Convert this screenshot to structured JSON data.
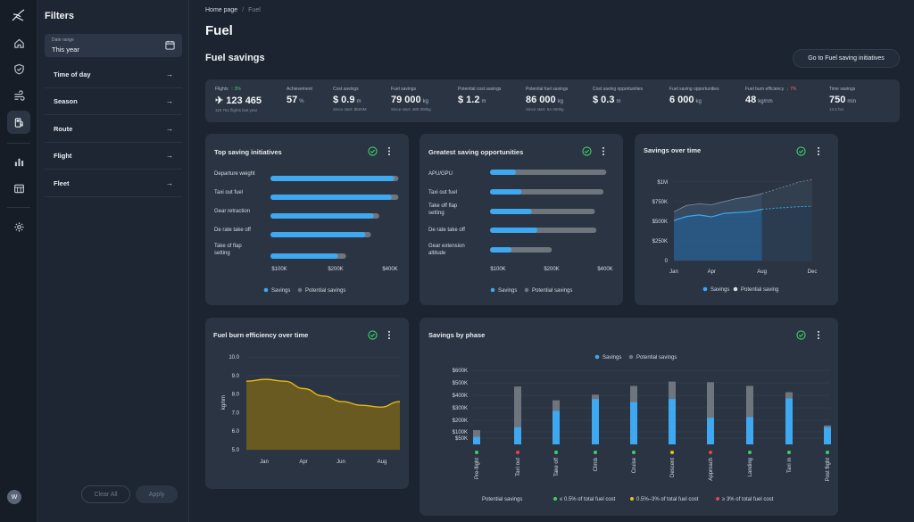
{
  "nav": {
    "icons": [
      "home-icon",
      "shield-icon",
      "wind-icon",
      "fuel-icon",
      "bar-chart-icon",
      "table-icon",
      "gear-icon"
    ]
  },
  "filters": {
    "title": "Filters",
    "date_range_label": "Date range",
    "date_range_value": "This year",
    "items": [
      "Time of day",
      "Season",
      "Route",
      "Flight",
      "Fleet"
    ],
    "clear_label": "Clear All",
    "apply_label": "Apply",
    "avatar_initial": "W"
  },
  "breadcrumb": {
    "home": "Home page",
    "current": "Fuel"
  },
  "page_title": "Fuel",
  "section_title": "Fuel savings",
  "cta_label": "Go to Fuel saving initiatives",
  "kpis": [
    {
      "label": "Flights",
      "delta": "3%",
      "delta_dir": "up",
      "value": "123 465",
      "unit": "",
      "sub": "119 761 flights last year"
    },
    {
      "label": "Achievement",
      "value": "57",
      "unit": "%",
      "sub": ""
    },
    {
      "label": "Cost savings",
      "value": "$ 0.9",
      "unit": "m",
      "sub": "Since start: $500M"
    },
    {
      "label": "Fuel savings",
      "value": "79 000",
      "unit": "kg",
      "sub": "Since start: 480 000kg"
    },
    {
      "label": "Potential cost savings",
      "value": "$ 1.2",
      "unit": "m",
      "sub": ""
    },
    {
      "label": "Potential fuel savings",
      "value": "86 000",
      "unit": "kg",
      "sub": "Since start: 5A 000kg"
    },
    {
      "label": "Cost saving opportunities",
      "value": "$ 0.3",
      "unit": "m",
      "sub": ""
    },
    {
      "label": "Fuel saving opportunities",
      "value": "6 000",
      "unit": "kg",
      "sub": ""
    },
    {
      "label": "Fuel burn efficiency",
      "delta": "7%",
      "delta_dir": "down",
      "value": "48",
      "unit": "kg/nm",
      "sub": ""
    },
    {
      "label": "Time savings",
      "value": "750",
      "unit": "min",
      "sub": "12.5 hrs"
    }
  ],
  "colors": {
    "savings": "#3ea8f0",
    "potential": "#6f757d",
    "efficiency": "#e8b51a",
    "green": "#3ecf6a",
    "yellow": "#e8c21a",
    "red": "#e04848"
  },
  "chart_data": [
    {
      "type": "bar",
      "title": "Top  saving initiatives",
      "orientation": "horizontal",
      "categories": [
        "Departure weight",
        "Taxi out fuel",
        "Gear retraction",
        "De rate take off",
        "Take of flap setting"
      ],
      "series": [
        {
          "name": "Savings",
          "values": [
            450,
            440,
            375,
            345,
            245
          ]
        },
        {
          "name": "Potential savings",
          "values": [
            465,
            465,
            395,
            365,
            275
          ]
        }
      ],
      "tick_labels": [
        "$100K",
        "$200K",
        "$400K"
      ],
      "xlim": [
        0,
        470
      ],
      "legend": "bottom"
    },
    {
      "type": "bar",
      "title": "Greatest saving opportunities",
      "orientation": "horizontal",
      "categories": [
        "APU/GPU",
        "Taxi out fuel",
        "Take off flap setting",
        "De rate take off",
        "Gear extension altitude"
      ],
      "series": [
        {
          "name": "Savings",
          "values": [
            90,
            110,
            145,
            165,
            75
          ]
        },
        {
          "name": "Potential savings",
          "values": [
            405,
            395,
            365,
            370,
            215
          ]
        }
      ],
      "tick_labels": [
        "$100K",
        "$200K",
        "$400K"
      ],
      "xlim": [
        0,
        410
      ],
      "legend": "bottom"
    },
    {
      "type": "line",
      "title": "Savings over time",
      "x": [
        "Jan",
        "Feb",
        "Mar",
        "Apr",
        "May",
        "Jun",
        "Jul",
        "Aug",
        "Sep",
        "Oct",
        "Nov",
        "Dec"
      ],
      "series": [
        {
          "name": "Savings",
          "values": [
            510000,
            560000,
            580000,
            555000,
            600000,
            610000,
            620000,
            650000,
            null,
            null,
            null,
            null
          ],
          "forecast": [
            null,
            null,
            null,
            null,
            null,
            null,
            null,
            650000,
            665000,
            675000,
            685000,
            690000
          ]
        },
        {
          "name": "Potential saving",
          "values": [
            620000,
            700000,
            720000,
            710000,
            750000,
            790000,
            810000,
            850000,
            null,
            null,
            null,
            null
          ],
          "forecast": [
            null,
            null,
            null,
            null,
            null,
            null,
            null,
            850000,
            900000,
            950000,
            1000000,
            1030000
          ]
        }
      ],
      "tick_labels_x": [
        "Jan",
        "Apr",
        "Aug",
        "Dec"
      ],
      "tick_labels_y": [
        "0",
        "$250K",
        "$500K",
        "$750K",
        "$1M"
      ],
      "ylim": [
        0,
        1100000
      ],
      "legend": "bottom"
    },
    {
      "type": "area",
      "title": "Fuel burn efficiency over time",
      "ylabel": "kg/nm",
      "x": [
        1,
        2,
        3,
        4,
        5,
        6,
        7,
        8,
        9
      ],
      "values": [
        8.7,
        8.8,
        8.7,
        8.3,
        7.9,
        7.6,
        7.4,
        7.3,
        7.6
      ],
      "tick_labels_x": [
        "Jan",
        "Apr",
        "Jun",
        "Aug"
      ],
      "tick_labels_y": [
        "5.0",
        "6.0",
        "7.0",
        "8.0",
        "9.0",
        "10.0"
      ],
      "ylim": [
        5,
        10.3
      ]
    },
    {
      "type": "bar",
      "title": "Savings by phase",
      "categories": [
        "Pre-flight",
        "Taxi out",
        "Take off",
        "Climb",
        "Cruise",
        "Descent",
        "Approach",
        "Landing",
        "Taxi in",
        "Post flight"
      ],
      "series": [
        {
          "name": "Savings",
          "values": [
            60000,
            140000,
            275000,
            370000,
            345000,
            370000,
            220000,
            225000,
            375000,
            140000
          ]
        },
        {
          "name": "Potential savings",
          "values": [
            115000,
            470000,
            360000,
            405000,
            475000,
            510000,
            505000,
            475000,
            425000,
            155000
          ]
        }
      ],
      "category_status": [
        "green",
        "red",
        "green",
        "green",
        "green",
        "yellow",
        "red",
        "green",
        "green",
        "green"
      ],
      "tick_labels_y": [
        "$50K",
        "$100K",
        "$200K",
        "$300K",
        "$400K",
        "$500K",
        "$600K"
      ],
      "y_ticks": [
        50000,
        100000,
        200000,
        300000,
        400000,
        500000,
        600000
      ],
      "legend": "top",
      "status_legend_title": "Potential savings",
      "status_legend": [
        "≤ 0.5% of total fuel cost",
        "0.5%–3% of total fuel cost",
        "≥ 3% of total fuel cost"
      ]
    }
  ]
}
